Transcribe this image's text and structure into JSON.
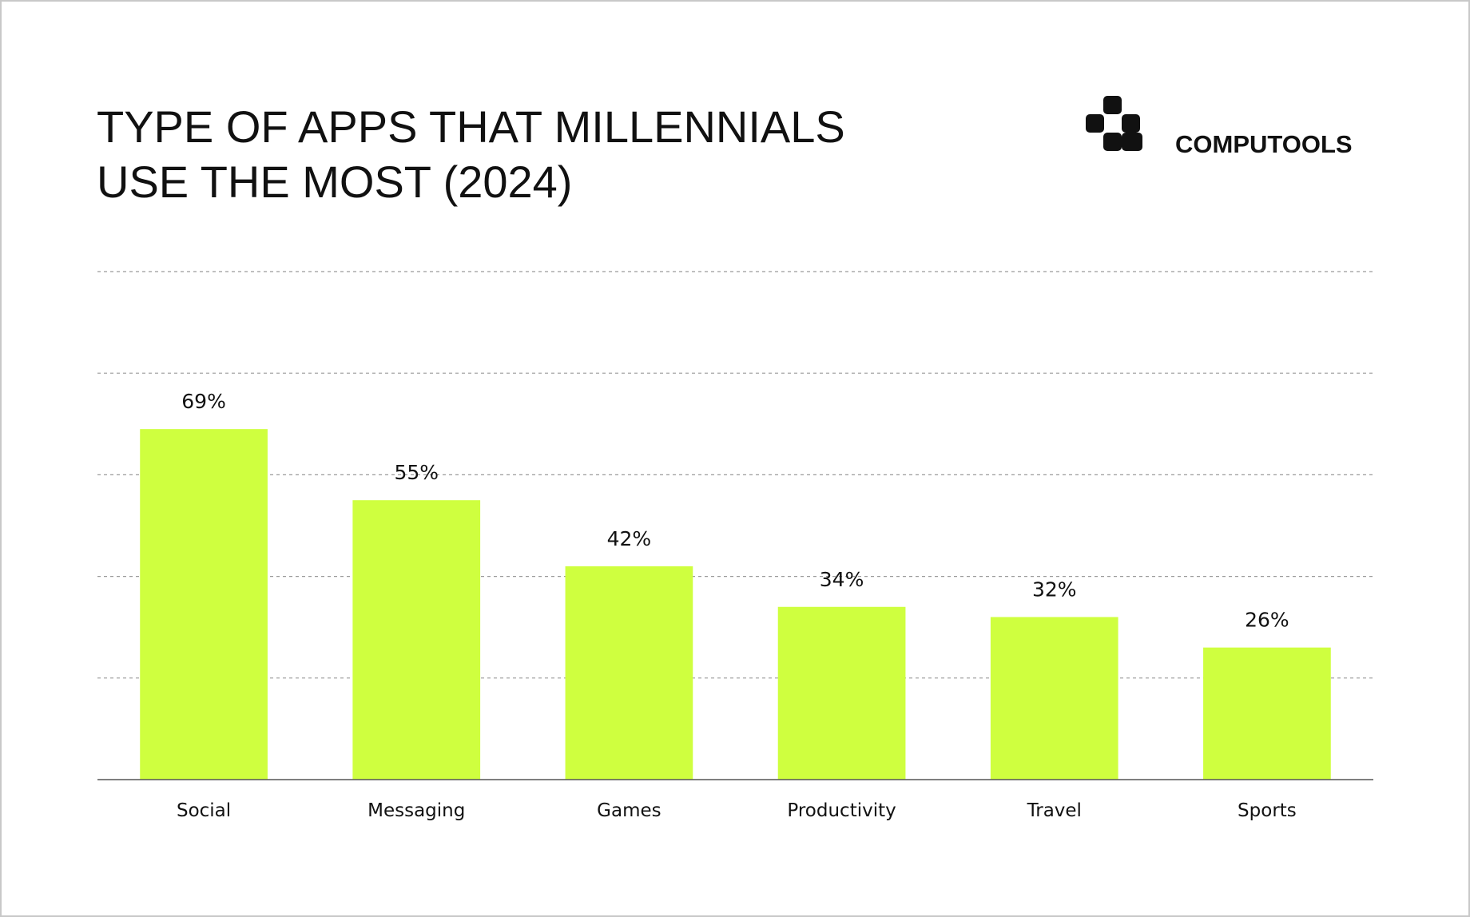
{
  "chart_data": {
    "type": "bar",
    "title": [
      "TYPE OF APPS THAT MILLENNIALS",
      "USE THE MOST (2024)"
    ],
    "brand": "COMPUTOOLS",
    "categories": [
      "Social",
      "Messaging",
      "Games",
      "Productivity",
      "Travel",
      "Sports"
    ],
    "values": [
      69,
      55,
      42,
      34,
      32,
      26
    ],
    "value_labels": [
      "69%",
      "55%",
      "42%",
      "34%",
      "32%",
      "26%"
    ],
    "color": "#cfff3f",
    "ylim": [
      0,
      100
    ],
    "yticks": [
      0,
      20,
      40,
      60,
      80,
      100
    ],
    "grid": true
  }
}
